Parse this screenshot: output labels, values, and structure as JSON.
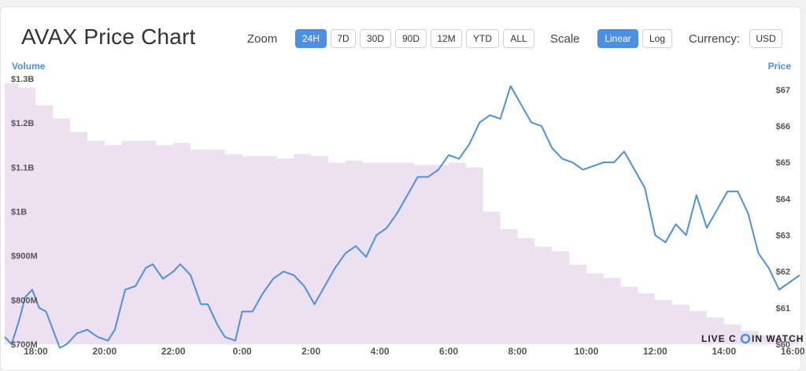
{
  "header": {
    "title": "AVAX Price Chart",
    "zoom_label": "Zoom",
    "zoom_options": [
      "24H",
      "7D",
      "30D",
      "90D",
      "12M",
      "YTD",
      "ALL"
    ],
    "zoom_selected": "24H",
    "scale_label": "Scale",
    "scale_options": [
      "Linear",
      "Log"
    ],
    "scale_selected": "Linear",
    "currency_label": "Currency:",
    "currency_value": "USD"
  },
  "watermark": {
    "left": "LIVE C",
    "right": "IN WATCH",
    "coin_glyph": "coin-icon"
  },
  "colors": {
    "price_line": "#4d8fe0",
    "volume_fill": "#ede0f0",
    "accent": "#4d8fe0"
  },
  "chart_data": {
    "type": "line",
    "left_axis": {
      "title": "Volume",
      "ticks": [
        "$700M",
        "$800M",
        "$900M",
        "$1B",
        "$1.1B",
        "$1.2B",
        "$1.3B"
      ],
      "range": [
        700,
        1300
      ],
      "unit": "millions USD"
    },
    "right_axis": {
      "title": "Price",
      "ticks": [
        "$60",
        "$61",
        "$62",
        "$63",
        "$64",
        "$65",
        "$66",
        "$67"
      ],
      "range": [
        60,
        67.3
      ]
    },
    "x_axis": {
      "ticks": [
        "18:00",
        "20:00",
        "22:00",
        "0:00",
        "2:00",
        "4:00",
        "6:00",
        "8:00",
        "10:00",
        "12:00",
        "14:00",
        "16:00"
      ],
      "range_hours": [
        17.1,
        40.2
      ]
    },
    "series": [
      {
        "name": "Price",
        "axis": "right",
        "style": "line",
        "x": [
          17.1,
          17.3,
          17.5,
          17.7,
          17.9,
          18.1,
          18.3,
          18.5,
          18.7,
          18.9,
          19.2,
          19.5,
          19.8,
          20.1,
          20.3,
          20.6,
          20.9,
          21.2,
          21.4,
          21.7,
          22.0,
          22.2,
          22.5,
          22.8,
          23.0,
          23.3,
          23.5,
          23.8,
          24.0,
          24.3,
          24.6,
          24.9,
          25.2,
          25.5,
          25.8,
          26.1,
          26.4,
          26.7,
          27.0,
          27.3,
          27.6,
          27.9,
          28.2,
          28.5,
          28.8,
          29.1,
          29.4,
          29.7,
          30.0,
          30.3,
          30.6,
          30.9,
          31.2,
          31.5,
          31.8,
          32.1,
          32.4,
          32.7,
          33.0,
          33.3,
          33.6,
          33.9,
          34.2,
          34.5,
          34.8,
          35.1,
          35.4,
          35.7,
          36.0,
          36.3,
          36.6,
          36.9,
          37.2,
          37.5,
          37.8,
          38.1,
          38.4,
          38.7,
          39.0,
          39.3,
          39.6,
          39.9,
          40.2
        ],
        "values": [
          60.2,
          60.0,
          60.6,
          61.3,
          61.5,
          61.0,
          60.9,
          60.4,
          59.9,
          60.0,
          60.3,
          60.4,
          60.2,
          60.1,
          60.4,
          61.5,
          61.6,
          62.1,
          62.2,
          61.8,
          62.0,
          62.2,
          61.9,
          61.1,
          61.1,
          60.5,
          60.2,
          60.1,
          60.9,
          60.9,
          61.4,
          61.8,
          62.0,
          61.9,
          61.6,
          61.1,
          61.6,
          62.1,
          62.5,
          62.7,
          62.4,
          63.0,
          63.2,
          63.6,
          64.1,
          64.6,
          64.6,
          64.8,
          65.2,
          65.1,
          65.5,
          66.1,
          66.3,
          66.2,
          67.1,
          66.6,
          66.1,
          66.0,
          65.4,
          65.1,
          65.0,
          64.8,
          64.9,
          65.0,
          65.0,
          65.3,
          64.8,
          64.3,
          63.0,
          62.8,
          63.3,
          63.0,
          64.1,
          63.2,
          63.7,
          64.2,
          64.2,
          63.6,
          62.5,
          62.1,
          61.5,
          61.7,
          61.9
        ]
      },
      {
        "name": "Volume",
        "axis": "left",
        "style": "area",
        "x": [
          17.1,
          17.5,
          18.0,
          18.5,
          19.0,
          19.5,
          20.0,
          20.5,
          21.0,
          21.5,
          22.0,
          22.5,
          23.0,
          23.5,
          24.0,
          24.5,
          25.0,
          25.5,
          26.0,
          26.5,
          27.0,
          27.5,
          28.0,
          28.5,
          29.0,
          29.5,
          30.0,
          30.5,
          31.0,
          31.5,
          32.0,
          32.5,
          33.0,
          33.5,
          34.0,
          34.5,
          35.0,
          35.5,
          36.0,
          36.5,
          37.0,
          37.5,
          38.0,
          38.5,
          39.0,
          39.5,
          40.2
        ],
        "values": [
          1290,
          1280,
          1240,
          1210,
          1180,
          1160,
          1150,
          1160,
          1160,
          1150,
          1155,
          1140,
          1140,
          1130,
          1125,
          1125,
          1120,
          1130,
          1125,
          1110,
          1115,
          1110,
          1110,
          1110,
          1105,
          1105,
          1110,
          1100,
          1000,
          960,
          940,
          920,
          910,
          880,
          860,
          850,
          830,
          815,
          800,
          790,
          775,
          760,
          745,
          730,
          720,
          715,
          710
        ]
      }
    ]
  }
}
